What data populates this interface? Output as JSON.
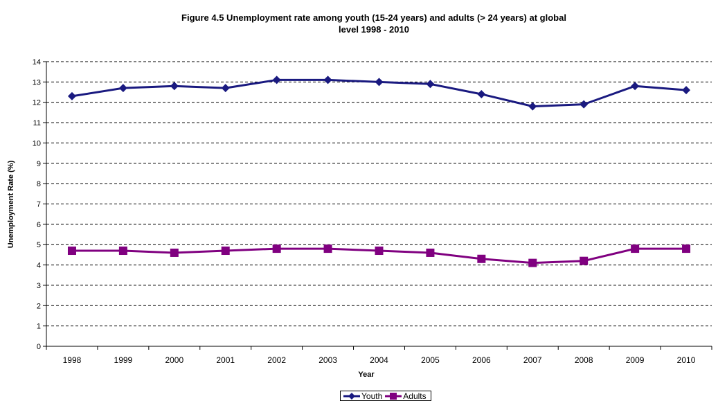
{
  "chart_data": {
    "type": "line",
    "title_lines": [
      "Figure 4.5 Unemployment rate among youth (15-24 years) and adults (> 24 years) at global",
      "level 1998 - 2010"
    ],
    "xlabel": "Year",
    "ylabel": "Unemployment Rate (%)",
    "x": [
      "1998",
      "1999",
      "2000",
      "2001",
      "2002",
      "2003",
      "2004",
      "2005",
      "2006",
      "2007",
      "2008",
      "2009",
      "2010"
    ],
    "ylim": [
      0,
      14
    ],
    "yticks": [
      "0",
      "1",
      "2",
      "3",
      "4",
      "5",
      "6",
      "7",
      "8",
      "9",
      "10",
      "11",
      "12",
      "13",
      "14"
    ],
    "grid": "horizontal-dashed",
    "legend_position": "bottom",
    "series": [
      {
        "name": "Youth",
        "color": "#1A1A80",
        "marker": "diamond",
        "values": [
          12.3,
          12.7,
          12.8,
          12.7,
          13.1,
          13.1,
          13.0,
          12.9,
          12.4,
          11.8,
          11.9,
          12.8,
          12.6
        ]
      },
      {
        "name": "Adults",
        "color": "#800080",
        "marker": "square",
        "values": [
          4.7,
          4.7,
          4.6,
          4.7,
          4.8,
          4.8,
          4.7,
          4.6,
          4.3,
          4.1,
          4.2,
          4.8,
          4.8
        ]
      }
    ]
  }
}
